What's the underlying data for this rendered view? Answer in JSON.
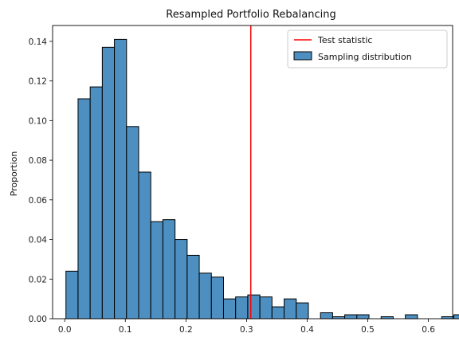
{
  "chart_data": {
    "type": "bar",
    "title": "Resampled Portfolio Rebalancing",
    "xlabel": "",
    "ylabel": "Proportion",
    "xlim": [
      -0.02,
      0.64
    ],
    "ylim": [
      0,
      0.148
    ],
    "x_ticks": [
      0.0,
      0.1,
      0.2,
      0.3,
      0.4,
      0.5,
      0.6
    ],
    "x_tick_labels": [
      "0.0",
      "0.1",
      "0.2",
      "0.3",
      "0.4",
      "0.5",
      "0.6"
    ],
    "y_ticks": [
      0.0,
      0.02,
      0.04,
      0.06,
      0.08,
      0.1,
      0.12,
      0.14
    ],
    "y_tick_labels": [
      "0.00",
      "0.02",
      "0.04",
      "0.06",
      "0.08",
      "0.10",
      "0.12",
      "0.14"
    ],
    "grid": false,
    "legend_position": "top-right",
    "bin_start": 0.002,
    "bin_width": 0.02,
    "series": [
      {
        "name": "Sampling distribution",
        "color": "#4C8FC0",
        "edge_color": "#000000",
        "values": [
          0.024,
          0.111,
          0.117,
          0.137,
          0.141,
          0.097,
          0.074,
          0.049,
          0.05,
          0.04,
          0.032,
          0.023,
          0.021,
          0.01,
          0.011,
          0.012,
          0.011,
          0.006,
          0.01,
          0.008,
          0.0,
          0.003,
          0.001,
          0.002,
          0.002,
          0.0,
          0.001,
          0.0,
          0.002,
          0.0,
          0.0,
          0.001,
          0.002
        ]
      }
    ],
    "reference_lines": [
      {
        "name": "Test statistic",
        "x": 0.307,
        "color": "#FF0000"
      }
    ]
  }
}
